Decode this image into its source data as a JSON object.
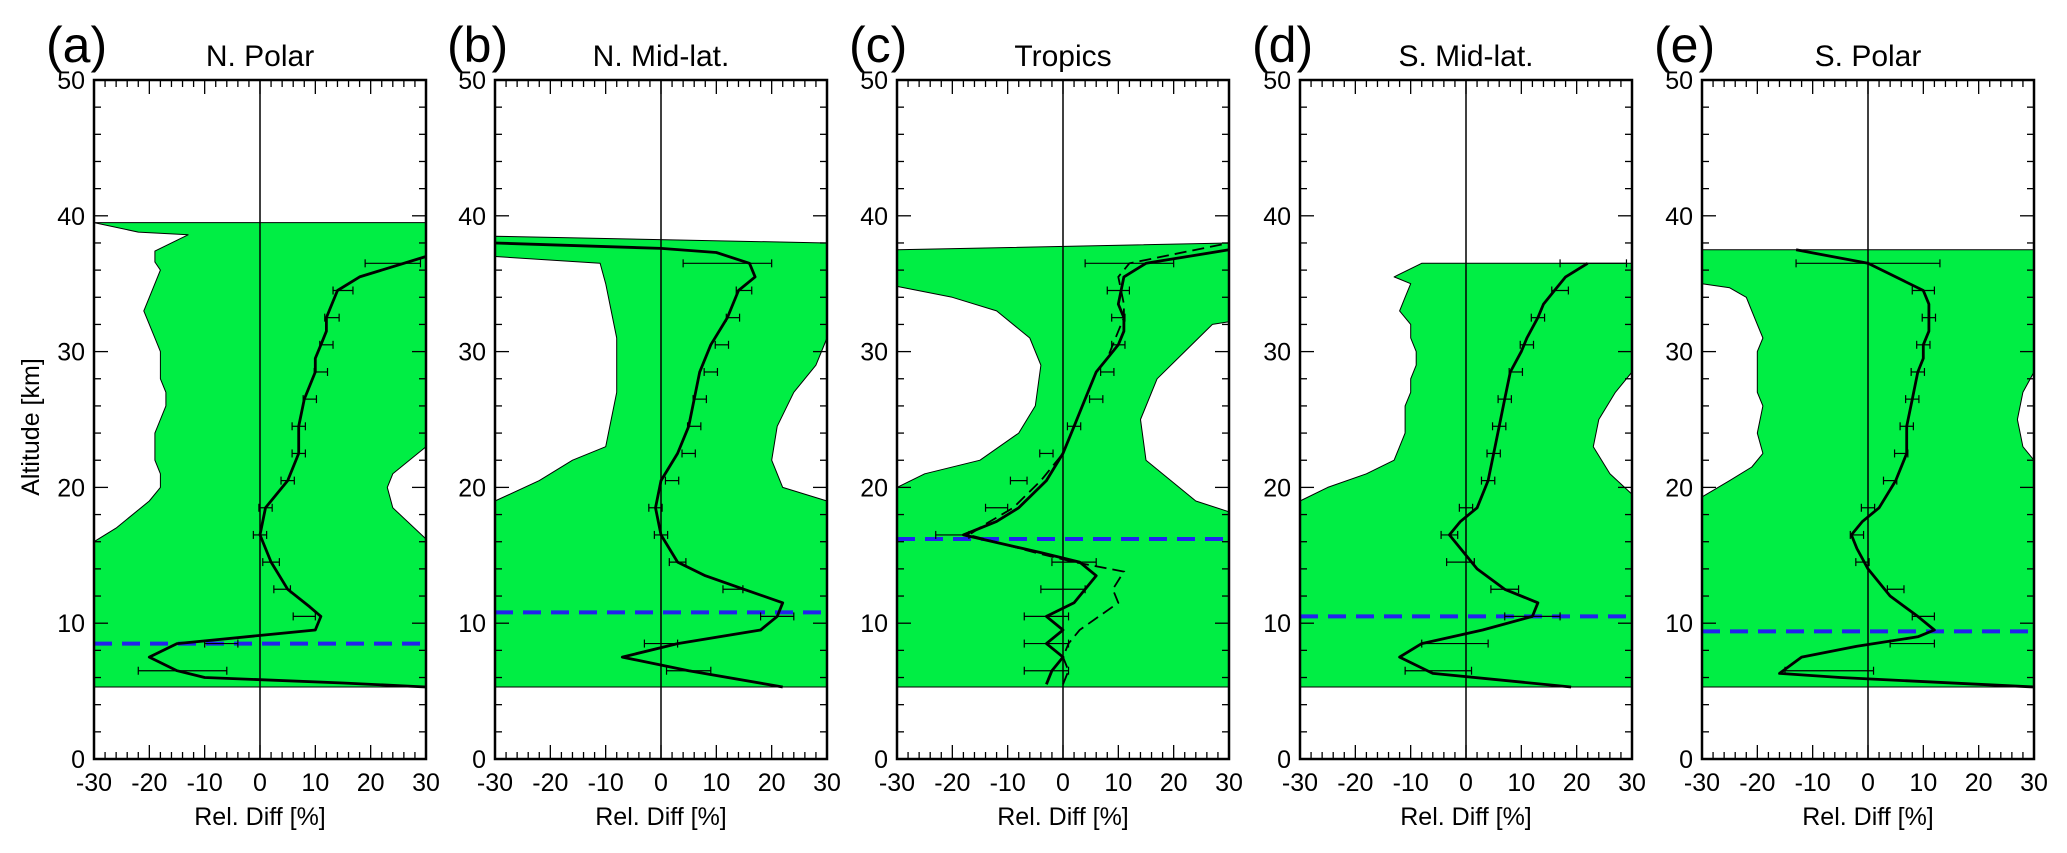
{
  "figure": {
    "ylabel": "Altitude [km]",
    "colors": {
      "band": "#00ee44",
      "profile": "#000000",
      "tropopause": "#2222ee",
      "frame": "#000000"
    }
  },
  "chart_data": [
    {
      "type": "line",
      "panel": "(a)",
      "title": "N. Polar",
      "xlabel": "Rel. Diff [%]",
      "ylabel": "Altitude [km]",
      "xlim": [
        -30,
        30
      ],
      "ylim": [
        0,
        50
      ],
      "xticks": [
        -30,
        -20,
        -10,
        0,
        10,
        20,
        30
      ],
      "yticks": [
        0,
        10,
        20,
        30,
        40,
        50
      ],
      "tropopause_km": 8.5,
      "band_top_km": 39.5,
      "band_bottom_km": 5.3,
      "band_left_edge": {
        "x": [
          -30,
          -30,
          -26,
          -20,
          -18,
          -18,
          -19,
          -19,
          -19,
          -18,
          -17,
          -17,
          -18,
          -18,
          -18,
          -19,
          -21,
          -19,
          -18,
          -19,
          -19,
          -13,
          -22,
          -30
        ],
        "y": [
          5.3,
          16,
          17,
          19,
          20,
          21,
          22,
          23,
          24,
          25,
          26,
          27,
          28,
          29,
          30,
          31,
          33,
          35,
          36,
          36.6,
          37.4,
          38.6,
          38.8,
          39.5
        ]
      },
      "band_right_edge": {
        "x": [
          30,
          30,
          24,
          23,
          24,
          30,
          30
        ],
        "y": [
          5.3,
          16.2,
          18.5,
          20,
          21,
          23,
          39.5
        ]
      },
      "profile": {
        "x": [
          30,
          15,
          -10,
          -15,
          -20,
          -15,
          10,
          11,
          9,
          5,
          2,
          0,
          1,
          5,
          7,
          7,
          8,
          10,
          10,
          11,
          12,
          12,
          13,
          14,
          18,
          30
        ],
        "y": [
          5.3,
          5.6,
          6,
          6.5,
          7.5,
          8.5,
          9.5,
          10.5,
          11.2,
          12.5,
          14.5,
          16.5,
          18.5,
          20.5,
          22.5,
          24.5,
          26.5,
          28.5,
          29.5,
          30.5,
          31.5,
          32.5,
          33.5,
          34.5,
          35.5,
          37
        ]
      },
      "error_bars": {
        "y": [
          6.5,
          8.5,
          10.5,
          12.5,
          14.5,
          16.5,
          18.5,
          20.5,
          22.5,
          24.5,
          26.5,
          28.5,
          30.5,
          32.5,
          34.5,
          36.5
        ],
        "x": [
          -14,
          -7,
          8,
          4,
          2,
          0,
          1,
          5,
          7,
          7,
          9,
          11,
          12,
          13,
          15,
          24
        ],
        "half_width": [
          8,
          3,
          2,
          1.5,
          1.5,
          1.2,
          1.2,
          1.2,
          1.2,
          1.2,
          1.2,
          1.2,
          1.2,
          1.3,
          1.8,
          5
        ]
      },
      "dashed_profile": null
    },
    {
      "type": "line",
      "panel": "(b)",
      "title": "N. Mid-lat.",
      "xlabel": "Rel. Diff [%]",
      "ylabel": "",
      "xlim": [
        -30,
        30
      ],
      "ylim": [
        0,
        50
      ],
      "xticks": [
        -30,
        -20,
        -10,
        0,
        10,
        20,
        30
      ],
      "yticks": [
        0,
        10,
        20,
        30,
        40,
        50
      ],
      "tropopause_km": 10.8,
      "band_top_km": 38.5,
      "band_bottom_km": 5.3,
      "band_left_edge": {
        "x": [
          -30,
          -30,
          -22,
          -16,
          -10,
          -9,
          -8,
          -8,
          -8,
          -9,
          -10,
          -11,
          -30,
          -30
        ],
        "y": [
          5.3,
          19,
          20.5,
          22,
          23,
          25,
          27,
          29,
          31,
          33,
          35,
          36.5,
          37,
          38.5
        ]
      },
      "band_right_edge": {
        "x": [
          30,
          30,
          22,
          20,
          21,
          24,
          28,
          30,
          30
        ],
        "y": [
          5.3,
          19,
          20,
          22,
          24.5,
          27,
          29,
          31,
          38
        ]
      },
      "profile": {
        "x": [
          22,
          5,
          -7,
          3,
          18,
          21,
          22,
          15,
          8,
          3,
          0,
          -1,
          0,
          3,
          5,
          6,
          7,
          9,
          12,
          14,
          17,
          16,
          10,
          0,
          -30
        ],
        "y": [
          5.3,
          6.5,
          7.5,
          8.5,
          9.5,
          10.5,
          11.5,
          12.5,
          13.5,
          14.5,
          16.5,
          18.5,
          20.5,
          22.5,
          24.5,
          26.5,
          28.5,
          30.5,
          32.5,
          34.5,
          35.5,
          36.5,
          37.3,
          37.6,
          38
        ]
      },
      "error_bars": {
        "y": [
          6.5,
          8.5,
          10.5,
          12.5,
          14.5,
          16.5,
          18.5,
          20.5,
          22.5,
          24.5,
          26.5,
          28.5,
          30.5,
          32.5,
          34.5,
          36.5
        ],
        "x": [
          5,
          0,
          21,
          13,
          3,
          0,
          -1,
          2,
          5,
          6,
          7,
          9,
          11,
          13,
          15,
          12
        ],
        "half_width": [
          4,
          3,
          3,
          1.8,
          1.5,
          1.2,
          1.2,
          1.2,
          1.2,
          1.2,
          1.2,
          1.2,
          1.2,
          1.2,
          1.4,
          8
        ]
      },
      "dashed_profile": null
    },
    {
      "type": "line",
      "panel": "(c)",
      "title": "Tropics",
      "xlabel": "Rel. Diff [%]",
      "ylabel": "",
      "xlim": [
        -30,
        30
      ],
      "ylim": [
        0,
        50
      ],
      "xticks": [
        -30,
        -20,
        -10,
        0,
        10,
        20,
        30
      ],
      "yticks": [
        0,
        10,
        20,
        30,
        40,
        50
      ],
      "tropopause_km": 16.2,
      "band_top_km": 38,
      "band_bottom_km": 5.3,
      "band_left_edge": {
        "x": [
          -30,
          -30,
          -25,
          -15,
          -8,
          -5,
          -4,
          -6,
          -12,
          -20,
          -30,
          -30
        ],
        "y": [
          5.3,
          20,
          21,
          22,
          24,
          26,
          29,
          31,
          33,
          34,
          34.8,
          37.5
        ]
      },
      "band_right_edge": {
        "x": [
          30,
          30,
          24,
          15,
          14,
          17,
          22,
          27,
          30,
          30
        ],
        "y": [
          5.3,
          18.2,
          19,
          22,
          25,
          28,
          30,
          32,
          32.2,
          38
        ]
      },
      "profile": {
        "x": [
          -3,
          -2,
          0,
          -3,
          0,
          -3,
          2,
          6,
          3,
          -4,
          -18,
          -12,
          -8,
          -3,
          0,
          2,
          4,
          6,
          8,
          10,
          11,
          11,
          10,
          11,
          15,
          30
        ],
        "y": [
          5.5,
          6.5,
          7.5,
          8.5,
          9.5,
          10.5,
          11.5,
          13.5,
          14.5,
          15.2,
          16.5,
          17.5,
          18.5,
          20.5,
          22.5,
          24.5,
          26.5,
          28.5,
          29.5,
          30.5,
          31.5,
          32.5,
          33.5,
          35.5,
          36.5,
          37.5
        ]
      },
      "error_bars": {
        "y": [
          6.5,
          8.5,
          10.5,
          12.5,
          14.5,
          16.5,
          18.5,
          20.5,
          22.5,
          24.5,
          26.5,
          28.5,
          30.5,
          32.5,
          34.5,
          36.5
        ],
        "x": [
          -3,
          -3,
          -3,
          0,
          2,
          -20,
          -12,
          -8,
          -3,
          2,
          6,
          8,
          10,
          10,
          10,
          12
        ],
        "half_width": [
          4,
          4,
          4,
          4,
          4,
          3,
          2,
          1.5,
          1.2,
          1.2,
          1.2,
          1.2,
          1.2,
          1.2,
          2,
          8
        ]
      },
      "dashed_profile": {
        "x": [
          0,
          1,
          0,
          1,
          3,
          10,
          9,
          11,
          2,
          -5,
          -17,
          -14,
          -9,
          -4,
          0,
          2,
          4,
          6,
          8,
          9,
          10,
          11,
          11,
          10,
          12,
          30
        ],
        "y": [
          5.5,
          6.5,
          7.5,
          8.5,
          9.5,
          11.5,
          12.5,
          13.8,
          14.5,
          15.2,
          16.5,
          17.3,
          18.5,
          20.5,
          22.5,
          24.5,
          26.5,
          28.5,
          29.5,
          30.5,
          31.5,
          32.5,
          33.5,
          35.5,
          36.5,
          38
        ]
      }
    },
    {
      "type": "line",
      "panel": "(d)",
      "title": "S. Mid-lat.",
      "xlabel": "Rel. Diff [%]",
      "ylabel": "",
      "xlim": [
        -30,
        30
      ],
      "ylim": [
        0,
        50
      ],
      "xticks": [
        -30,
        -20,
        -10,
        0,
        10,
        20,
        30
      ],
      "yticks": [
        0,
        10,
        20,
        30,
        40,
        50
      ],
      "tropopause_km": 10.5,
      "band_top_km": 36.5,
      "band_bottom_km": 5.3,
      "band_left_edge": {
        "x": [
          -30,
          -30,
          -25,
          -18,
          -13,
          -11,
          -11,
          -10,
          -10,
          -9,
          -9,
          -10,
          -10,
          -12,
          -11,
          -10,
          -13,
          -8
        ],
        "y": [
          5.3,
          19,
          20,
          21,
          22,
          24,
          26,
          27,
          28,
          29,
          30,
          31,
          32,
          33,
          34,
          35,
          35.5,
          36.5
        ]
      },
      "band_right_edge": {
        "x": [
          30,
          30,
          26,
          23,
          24,
          27,
          30,
          30
        ],
        "y": [
          5.3,
          19.5,
          21,
          23,
          25,
          27,
          28.5,
          36.5
        ]
      },
      "profile": {
        "x": [
          19,
          -6,
          -12,
          -8,
          3,
          12,
          13,
          7,
          2,
          -1,
          -3,
          -1,
          2,
          4,
          5,
          6,
          7,
          8,
          10,
          11,
          13,
          14,
          16,
          18,
          22
        ],
        "y": [
          5.3,
          6.3,
          7.5,
          8.5,
          9.5,
          10.5,
          11.5,
          12.5,
          14,
          15.5,
          16.5,
          17.5,
          18.5,
          20.5,
          22.5,
          24.5,
          26.5,
          28.5,
          30,
          31,
          32.5,
          33.5,
          34.5,
          35.5,
          36.5
        ]
      },
      "error_bars": {
        "y": [
          6.5,
          8.5,
          10.5,
          12.5,
          14.5,
          16.5,
          18.5,
          20.5,
          22.5,
          24.5,
          26.5,
          28.5,
          30.5,
          32.5,
          34.5,
          36.5
        ],
        "x": [
          -5,
          -2,
          12,
          7,
          -1,
          -3,
          0,
          4,
          5,
          6,
          7,
          9,
          11,
          13,
          17,
          23
        ],
        "half_width": [
          6,
          6,
          5,
          2.5,
          2.5,
          1.5,
          1.2,
          1.2,
          1.2,
          1.2,
          1.2,
          1.2,
          1.2,
          1.2,
          1.5,
          6
        ]
      },
      "dashed_profile": null
    },
    {
      "type": "line",
      "panel": "(e)",
      "title": "S. Polar",
      "xlabel": "Rel. Diff [%]",
      "ylabel": "",
      "xlim": [
        -30,
        30
      ],
      "ylim": [
        0,
        50
      ],
      "xticks": [
        -30,
        -20,
        -10,
        0,
        10,
        20,
        30
      ],
      "yticks": [
        0,
        10,
        20,
        30,
        40,
        50
      ],
      "tropopause_km": 9.4,
      "band_top_km": 37.5,
      "band_bottom_km": 5.3,
      "band_left_edge": {
        "x": [
          -30,
          -30,
          -25,
          -21,
          -19,
          -20,
          -19,
          -20,
          -20,
          -20,
          -20,
          -19,
          -20,
          -21,
          -22,
          -25,
          -30,
          -30
        ],
        "y": [
          5.3,
          19.3,
          20.5,
          21.5,
          22.5,
          24,
          26,
          27,
          28,
          29,
          30,
          31,
          32,
          33,
          34,
          34.7,
          35,
          37.5
        ]
      },
      "band_right_edge": {
        "x": [
          30,
          30,
          28,
          27,
          28,
          30,
          30
        ],
        "y": [
          5.3,
          22,
          23,
          25,
          27,
          28.5,
          37.5
        ]
      },
      "profile": {
        "x": [
          30,
          -5,
          -16,
          -12,
          -2,
          9,
          12,
          9,
          4,
          0,
          -2,
          -3,
          -1,
          2,
          5,
          7,
          7,
          8,
          9,
          10,
          10,
          11,
          11,
          10,
          0,
          -13
        ],
        "y": [
          5.3,
          6,
          6.3,
          7.5,
          8.3,
          9,
          9.5,
          10.5,
          12,
          14,
          15.5,
          16.5,
          17.5,
          18.5,
          20.5,
          22.5,
          24.5,
          26.5,
          28.5,
          29.5,
          30.5,
          31.5,
          33.5,
          34.5,
          36.5,
          37.5
        ]
      },
      "error_bars": {
        "y": [
          6.5,
          8.5,
          10.5,
          12.5,
          14.5,
          16.5,
          18.5,
          20.5,
          22.5,
          24.5,
          26.5,
          28.5,
          30.5,
          32.5,
          34.5,
          36.5
        ],
        "x": [
          -7,
          8,
          10,
          5,
          -1,
          -2,
          0,
          4,
          6,
          7,
          8,
          9,
          10,
          11,
          10,
          0
        ],
        "half_width": [
          8,
          4,
          2,
          1.5,
          1.2,
          1.2,
          1.2,
          1.2,
          1.2,
          1.2,
          1.2,
          1.2,
          1.2,
          1.2,
          2,
          13
        ]
      },
      "dashed_profile": null
    }
  ]
}
